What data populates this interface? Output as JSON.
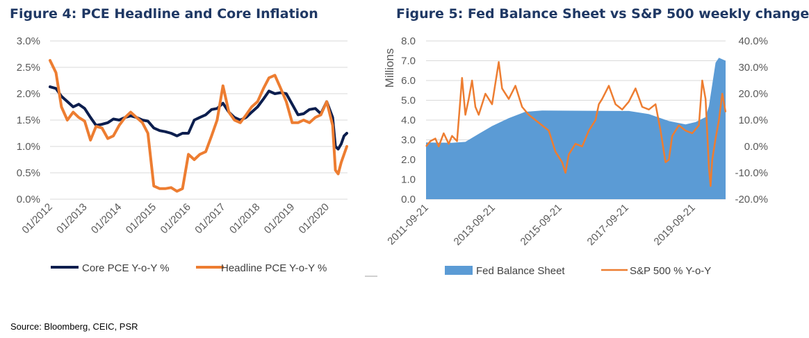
{
  "chart_data": [
    {
      "type": "line",
      "title": "Figure 4: PCE Headline and Core Inflation",
      "x_ticks": [
        "01/2012",
        "01/2013",
        "01/2014",
        "01/2015",
        "01/2016",
        "01/2017",
        "01/2018",
        "01/2019",
        "01/2020"
      ],
      "x_range": [
        2012.0,
        2020.6
      ],
      "ylim": [
        0,
        3.0
      ],
      "y_ticks": [
        "0.0%",
        "0.5%",
        "1.0%",
        "1.5%",
        "2.0%",
        "2.5%",
        "3.0%"
      ],
      "grid": true,
      "legend": "bottom",
      "series": [
        {
          "name": "Core PCE Y-o-Y %",
          "color": "#0C1E4E",
          "points": [
            [
              2012.0,
              2.13
            ],
            [
              2012.17,
              2.1
            ],
            [
              2012.33,
              1.95
            ],
            [
              2012.5,
              1.85
            ],
            [
              2012.67,
              1.75
            ],
            [
              2012.83,
              1.8
            ],
            [
              2013.0,
              1.72
            ],
            [
              2013.17,
              1.55
            ],
            [
              2013.33,
              1.4
            ],
            [
              2013.5,
              1.42
            ],
            [
              2013.67,
              1.45
            ],
            [
              2013.83,
              1.52
            ],
            [
              2014.0,
              1.5
            ],
            [
              2014.17,
              1.55
            ],
            [
              2014.33,
              1.58
            ],
            [
              2014.5,
              1.55
            ],
            [
              2014.67,
              1.5
            ],
            [
              2014.83,
              1.48
            ],
            [
              2015.0,
              1.35
            ],
            [
              2015.17,
              1.3
            ],
            [
              2015.33,
              1.28
            ],
            [
              2015.5,
              1.25
            ],
            [
              2015.67,
              1.2
            ],
            [
              2015.83,
              1.25
            ],
            [
              2016.0,
              1.25
            ],
            [
              2016.17,
              1.5
            ],
            [
              2016.33,
              1.55
            ],
            [
              2016.5,
              1.6
            ],
            [
              2016.67,
              1.7
            ],
            [
              2016.83,
              1.72
            ],
            [
              2017.0,
              1.82
            ],
            [
              2017.17,
              1.65
            ],
            [
              2017.33,
              1.55
            ],
            [
              2017.5,
              1.5
            ],
            [
              2017.67,
              1.55
            ],
            [
              2017.83,
              1.65
            ],
            [
              2018.0,
              1.75
            ],
            [
              2018.17,
              1.9
            ],
            [
              2018.33,
              2.05
            ],
            [
              2018.5,
              2.0
            ],
            [
              2018.67,
              2.02
            ],
            [
              2018.83,
              2.0
            ],
            [
              2019.0,
              1.8
            ],
            [
              2019.17,
              1.6
            ],
            [
              2019.33,
              1.62
            ],
            [
              2019.5,
              1.7
            ],
            [
              2019.67,
              1.72
            ],
            [
              2019.83,
              1.62
            ],
            [
              2020.0,
              1.85
            ],
            [
              2020.17,
              1.55
            ],
            [
              2020.25,
              1.0
            ],
            [
              2020.33,
              0.95
            ],
            [
              2020.42,
              1.05
            ],
            [
              2020.5,
              1.2
            ],
            [
              2020.58,
              1.25
            ]
          ]
        },
        {
          "name": "Headline PCE Y-o-Y %",
          "color": "#ED7D31",
          "points": [
            [
              2012.0,
              2.63
            ],
            [
              2012.17,
              2.4
            ],
            [
              2012.33,
              1.75
            ],
            [
              2012.5,
              1.5
            ],
            [
              2012.67,
              1.65
            ],
            [
              2012.83,
              1.55
            ],
            [
              2013.0,
              1.48
            ],
            [
              2013.17,
              1.12
            ],
            [
              2013.33,
              1.38
            ],
            [
              2013.5,
              1.35
            ],
            [
              2013.67,
              1.15
            ],
            [
              2013.83,
              1.2
            ],
            [
              2014.0,
              1.4
            ],
            [
              2014.17,
              1.55
            ],
            [
              2014.33,
              1.65
            ],
            [
              2014.5,
              1.55
            ],
            [
              2014.67,
              1.45
            ],
            [
              2014.83,
              1.25
            ],
            [
              2015.0,
              0.25
            ],
            [
              2015.17,
              0.2
            ],
            [
              2015.33,
              0.2
            ],
            [
              2015.5,
              0.22
            ],
            [
              2015.67,
              0.15
            ],
            [
              2015.83,
              0.2
            ],
            [
              2016.0,
              0.85
            ],
            [
              2016.17,
              0.75
            ],
            [
              2016.33,
              0.85
            ],
            [
              2016.5,
              0.9
            ],
            [
              2016.67,
              1.2
            ],
            [
              2016.83,
              1.5
            ],
            [
              2017.0,
              2.15
            ],
            [
              2017.17,
              1.65
            ],
            [
              2017.33,
              1.5
            ],
            [
              2017.5,
              1.45
            ],
            [
              2017.67,
              1.6
            ],
            [
              2017.83,
              1.75
            ],
            [
              2018.0,
              1.85
            ],
            [
              2018.17,
              2.1
            ],
            [
              2018.33,
              2.3
            ],
            [
              2018.5,
              2.35
            ],
            [
              2018.67,
              2.1
            ],
            [
              2018.83,
              1.85
            ],
            [
              2019.0,
              1.45
            ],
            [
              2019.17,
              1.45
            ],
            [
              2019.33,
              1.5
            ],
            [
              2019.5,
              1.45
            ],
            [
              2019.67,
              1.55
            ],
            [
              2019.83,
              1.6
            ],
            [
              2020.0,
              1.85
            ],
            [
              2020.17,
              1.4
            ],
            [
              2020.25,
              0.55
            ],
            [
              2020.33,
              0.48
            ],
            [
              2020.42,
              0.7
            ],
            [
              2020.5,
              0.85
            ],
            [
              2020.58,
              1.0
            ]
          ]
        }
      ]
    },
    {
      "type": "area",
      "title": "Figure 5: Fed Balance Sheet vs S&P 500 weekly change",
      "x_ticks": [
        "2011-09-21",
        "2013-09-21",
        "2015-09-21",
        "2017-09-21",
        "2019-09-21"
      ],
      "x_range": [
        2011.72,
        2020.7
      ],
      "ylabel": "Millions",
      "ylim": [
        0,
        8.0
      ],
      "y_ticks": [
        "0.0",
        "1.0",
        "2.0",
        "3.0",
        "4.0",
        "5.0",
        "6.0",
        "7.0",
        "8.0"
      ],
      "y2lim": [
        -0.2,
        0.4
      ],
      "y2_ticks": [
        "-20.0%",
        "-10.0%",
        "0.0%",
        "10.0%",
        "20.0%",
        "30.0%",
        "40.0%"
      ],
      "grid": true,
      "legend": "bottom",
      "series": [
        {
          "name": "Fed Balance Sheet",
          "color": "#5B9BD5",
          "axis": "left",
          "points": [
            [
              2011.72,
              2.87
            ],
            [
              2012.5,
              2.85
            ],
            [
              2012.9,
              2.9
            ],
            [
              2013.3,
              3.3
            ],
            [
              2013.7,
              3.7
            ],
            [
              2014.2,
              4.1
            ],
            [
              2014.7,
              4.42
            ],
            [
              2015.2,
              4.48
            ],
            [
              2016.5,
              4.47
            ],
            [
              2017.8,
              4.46
            ],
            [
              2018.4,
              4.3
            ],
            [
              2019.0,
              3.95
            ],
            [
              2019.5,
              3.78
            ],
            [
              2019.8,
              3.9
            ],
            [
              2020.1,
              4.15
            ],
            [
              2020.2,
              4.7
            ],
            [
              2020.3,
              5.8
            ],
            [
              2020.4,
              6.9
            ],
            [
              2020.5,
              7.15
            ],
            [
              2020.7,
              7.0
            ]
          ]
        },
        {
          "name": "S&P 500 % Y-o-Y",
          "color": "#ED7D31",
          "axis": "right",
          "points": [
            [
              2011.72,
              0.0
            ],
            [
              2011.85,
              0.02
            ],
            [
              2012.0,
              0.03
            ],
            [
              2012.1,
              0.0
            ],
            [
              2012.25,
              0.05
            ],
            [
              2012.4,
              0.01
            ],
            [
              2012.5,
              0.04
            ],
            [
              2012.65,
              0.02
            ],
            [
              2012.8,
              0.26
            ],
            [
              2012.9,
              0.12
            ],
            [
              2013.0,
              0.18
            ],
            [
              2013.1,
              0.25
            ],
            [
              2013.2,
              0.15
            ],
            [
              2013.3,
              0.12
            ],
            [
              2013.5,
              0.2
            ],
            [
              2013.7,
              0.16
            ],
            [
              2013.9,
              0.32
            ],
            [
              2014.0,
              0.22
            ],
            [
              2014.2,
              0.18
            ],
            [
              2014.4,
              0.23
            ],
            [
              2014.6,
              0.15
            ],
            [
              2014.8,
              0.12
            ],
            [
              2015.0,
              0.1
            ],
            [
              2015.2,
              0.08
            ],
            [
              2015.4,
              0.06
            ],
            [
              2015.6,
              -0.02
            ],
            [
              2015.8,
              -0.06
            ],
            [
              2015.9,
              -0.1
            ],
            [
              2016.0,
              -0.03
            ],
            [
              2016.2,
              0.01
            ],
            [
              2016.4,
              0.0
            ],
            [
              2016.6,
              0.06
            ],
            [
              2016.8,
              0.1
            ],
            [
              2016.9,
              0.16
            ],
            [
              2017.0,
              0.18
            ],
            [
              2017.2,
              0.23
            ],
            [
              2017.4,
              0.16
            ],
            [
              2017.6,
              0.14
            ],
            [
              2017.8,
              0.17
            ],
            [
              2018.0,
              0.22
            ],
            [
              2018.2,
              0.15
            ],
            [
              2018.4,
              0.14
            ],
            [
              2018.6,
              0.16
            ],
            [
              2018.75,
              0.06
            ],
            [
              2018.9,
              -0.06
            ],
            [
              2019.0,
              -0.05
            ],
            [
              2019.1,
              0.04
            ],
            [
              2019.3,
              0.08
            ],
            [
              2019.5,
              0.06
            ],
            [
              2019.7,
              0.05
            ],
            [
              2019.9,
              0.08
            ],
            [
              2020.0,
              0.25
            ],
            [
              2020.1,
              0.18
            ],
            [
              2020.2,
              -0.08
            ],
            [
              2020.25,
              -0.15
            ],
            [
              2020.3,
              -0.05
            ],
            [
              2020.4,
              0.03
            ],
            [
              2020.5,
              0.1
            ],
            [
              2020.6,
              0.2
            ],
            [
              2020.7,
              0.13
            ]
          ]
        }
      ]
    }
  ],
  "source": "Source: Bloomberg, CEIC, PSR"
}
